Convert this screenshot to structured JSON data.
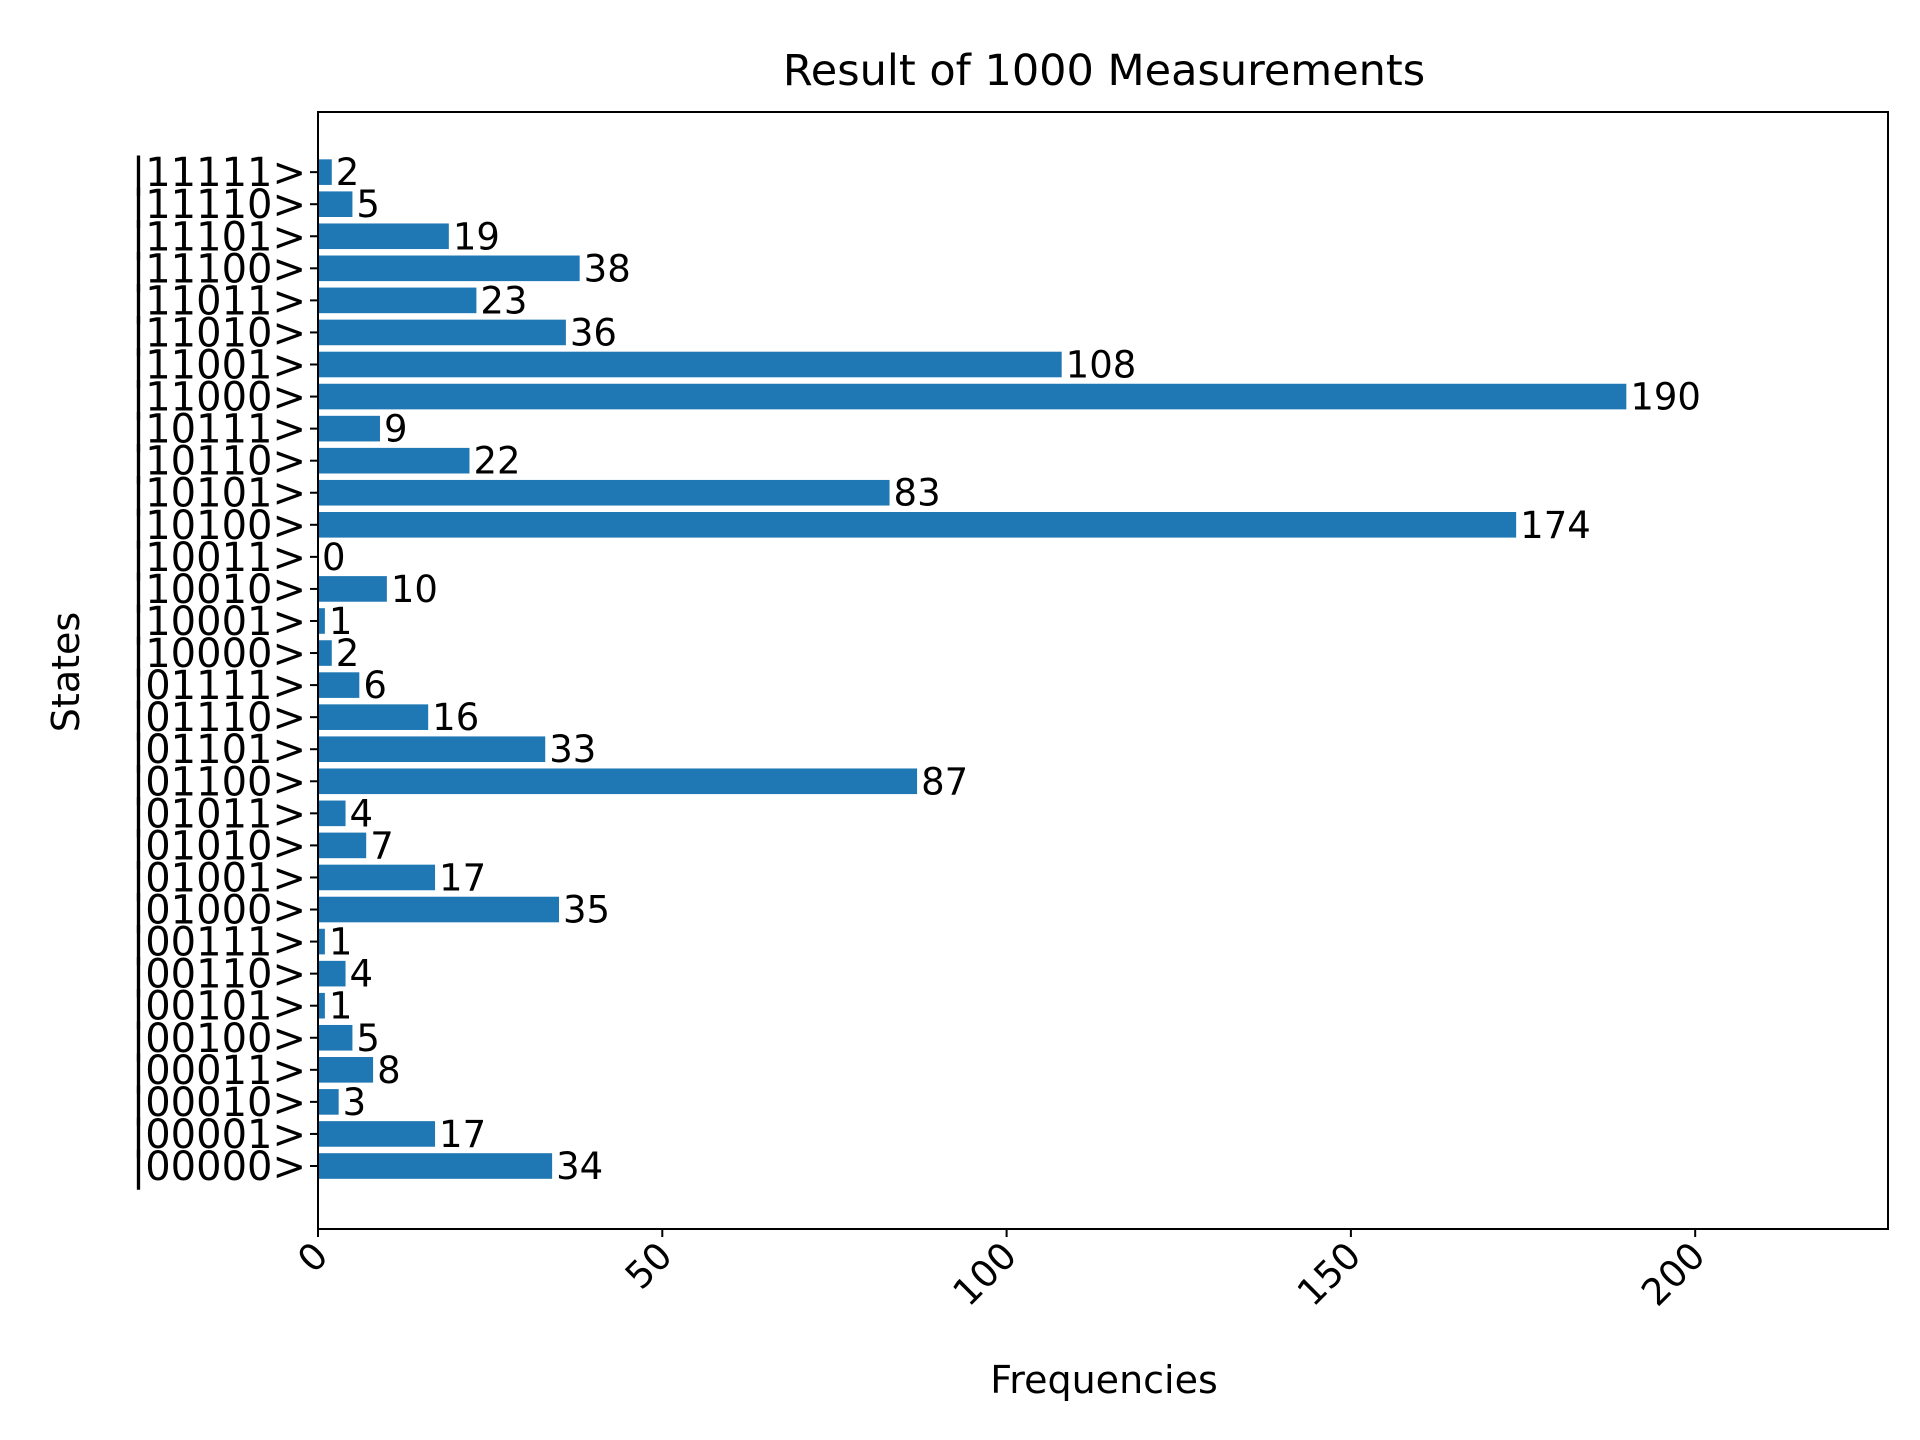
{
  "chart_data": {
    "type": "bar",
    "orientation": "horizontal",
    "title": "Result of 1000 Measurements",
    "xlabel": "Frequencies",
    "ylabel": "States",
    "categories": [
      "|00000>",
      "|00001>",
      "|00010>",
      "|00011>",
      "|00100>",
      "|00101>",
      "|00110>",
      "|00111>",
      "|01000>",
      "|01001>",
      "|01010>",
      "|01011>",
      "|01100>",
      "|01101>",
      "|01110>",
      "|01111>",
      "|10000>",
      "|10001>",
      "|10010>",
      "|10011>",
      "|10100>",
      "|10101>",
      "|10110>",
      "|10111>",
      "|11000>",
      "|11001>",
      "|11010>",
      "|11011>",
      "|11100>",
      "|11101>",
      "|11110>",
      "|11111>"
    ],
    "values": [
      34,
      17,
      3,
      8,
      5,
      1,
      4,
      1,
      35,
      17,
      7,
      4,
      87,
      33,
      16,
      6,
      2,
      1,
      10,
      0,
      174,
      83,
      22,
      9,
      190,
      108,
      36,
      23,
      38,
      19,
      5,
      2
    ],
    "xlim": [
      0,
      228
    ],
    "xticks": [
      0,
      50,
      100,
      150,
      200
    ],
    "xtick_rotation_deg": 45,
    "bar_color": "#1f77b4",
    "grid": false,
    "legend": "none"
  }
}
